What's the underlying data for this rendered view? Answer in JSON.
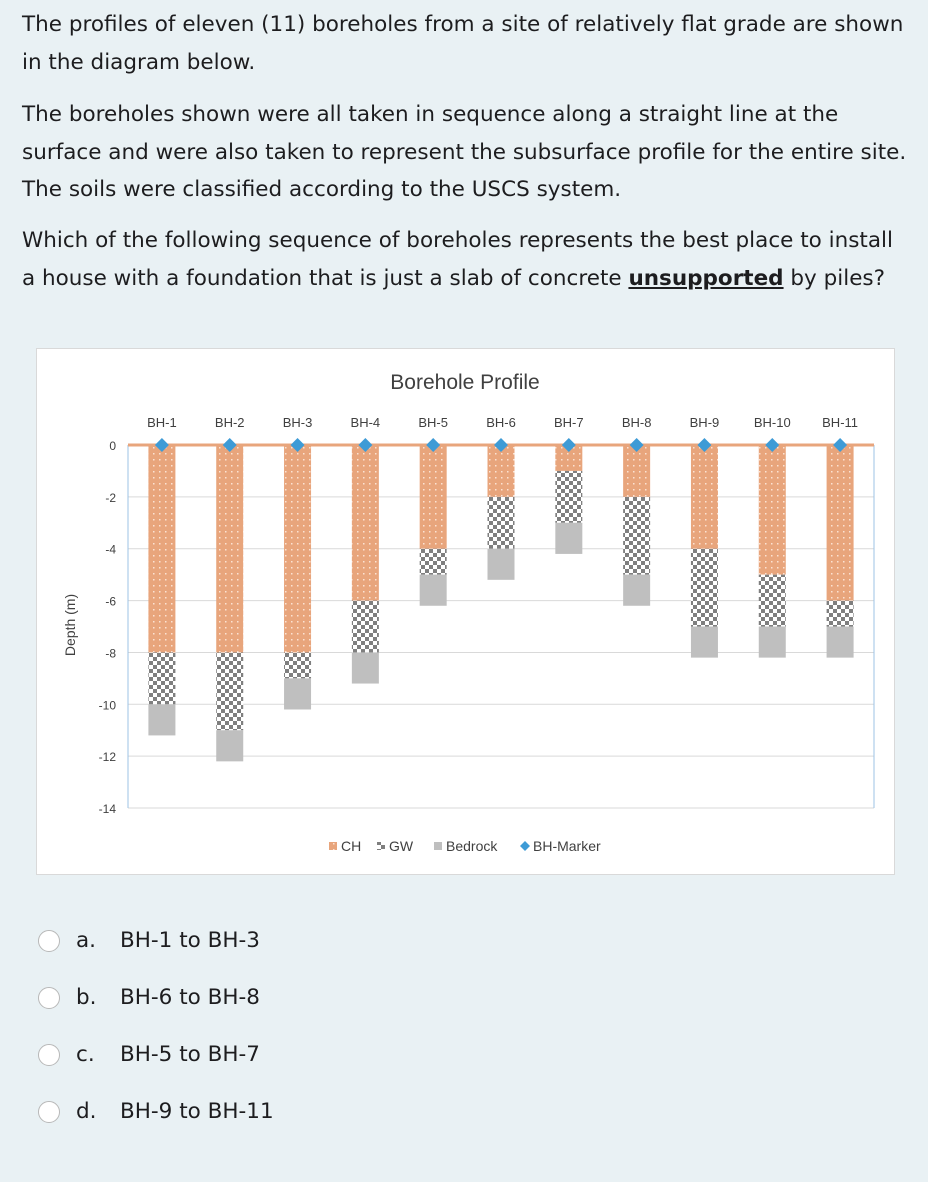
{
  "question": {
    "p1": "The profiles of eleven (11) boreholes from a site of relatively flat grade are shown in the diagram below.",
    "p2": "The boreholes shown were all taken in sequence along a straight line at the surface and were also taken to represent the subsurface profile for the entire site. The soils were classified according to the USCS system.",
    "p3_before": "Which of the following sequence of boreholes represents the best place to install a house with a foundation that is just a slab of concrete ",
    "p3_emph": "unsupported",
    "p3_after": " by piles?"
  },
  "chart_data": {
    "type": "bar",
    "stacked": true,
    "title": "Borehole Profile",
    "ylabel": "Depth (m)",
    "ylim": [
      -14,
      0
    ],
    "yticks": [
      0,
      -2,
      -4,
      -6,
      -8,
      -10,
      -12,
      -14
    ],
    "grid": true,
    "legend_position": "bottom",
    "categories": [
      "BH-1",
      "BH-2",
      "BH-3",
      "BH-4",
      "BH-5",
      "BH-6",
      "BH-7",
      "BH-8",
      "BH-9",
      "BH-10",
      "BH-11"
    ],
    "series": [
      {
        "name": "CH",
        "color": "#e8a57c",
        "pattern": "dots",
        "thickness": [
          8,
          8,
          8,
          6,
          4,
          2,
          1,
          2,
          4,
          5,
          6
        ]
      },
      {
        "name": "GW",
        "color": "#7f7f7f",
        "pattern": "checker",
        "thickness": [
          2,
          3,
          1,
          2,
          1,
          2,
          2,
          3,
          3,
          2,
          1
        ]
      },
      {
        "name": "Bedrock",
        "color": "#bfbfbf",
        "thickness": [
          1.2,
          1.2,
          1.2,
          1.2,
          1.2,
          1.2,
          1.2,
          1.2,
          1.2,
          1.2,
          1.2
        ]
      },
      {
        "name": "BH-Marker",
        "color": "#3e9bd6",
        "marker": "diamond",
        "values": [
          0,
          0,
          0,
          0,
          0,
          0,
          0,
          0,
          0,
          0,
          0
        ]
      }
    ]
  },
  "options": [
    {
      "letter": "a.",
      "text": "BH-1 to BH-3"
    },
    {
      "letter": "b.",
      "text": "BH-6 to BH-8"
    },
    {
      "letter": "c.",
      "text": "BH-5 to BH-7"
    },
    {
      "letter": "d.",
      "text": "BH-9 to BH-11"
    }
  ]
}
